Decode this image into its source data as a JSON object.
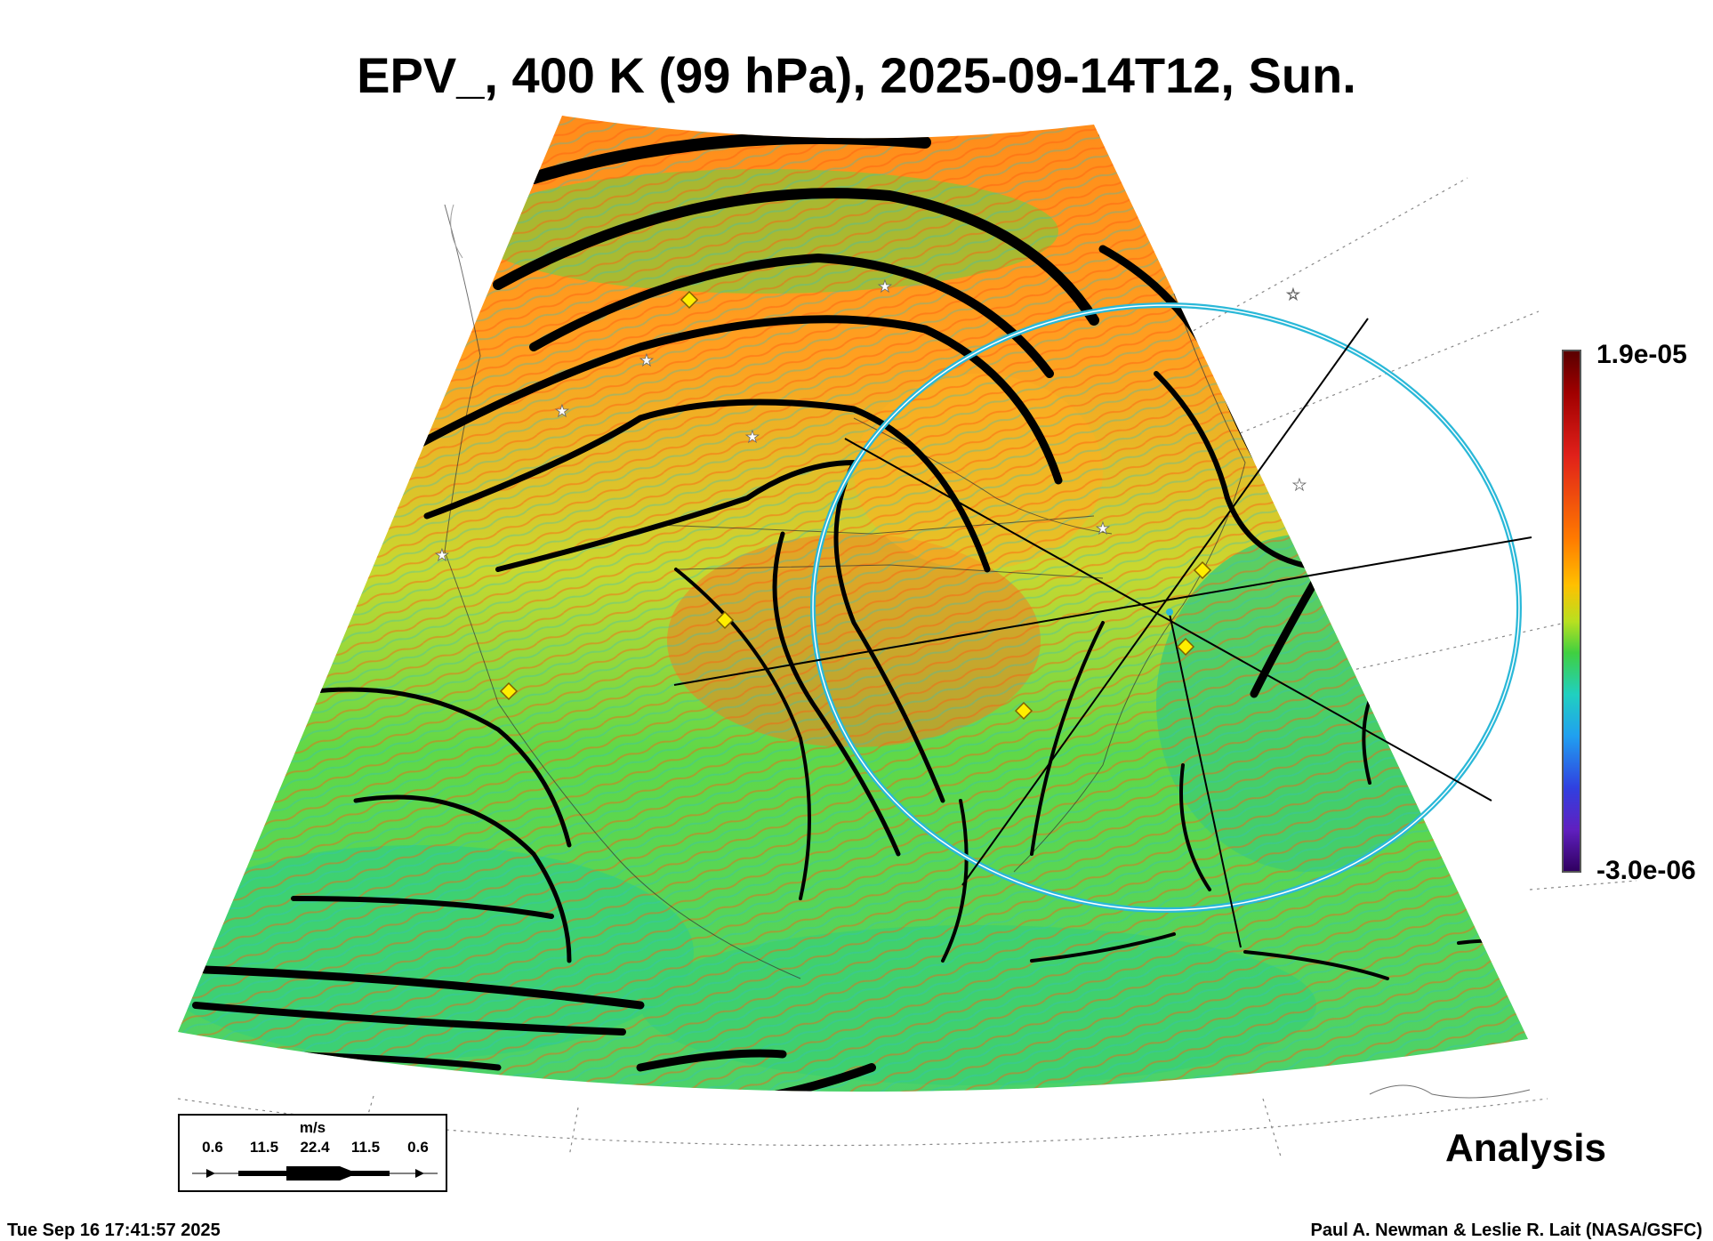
{
  "title": "EPV_, 400 K (99 hPa), 2025-09-14T12, Sun.",
  "colorbar": {
    "max_label": "1.9e-05",
    "min_label": "-3.0e-06",
    "colors": [
      "#5a0000",
      "#a00000",
      "#e0201a",
      "#ff7a00",
      "#ffc000",
      "#b8e020",
      "#40d040",
      "#20d0c0",
      "#20a0f0",
      "#3040e0",
      "#6020c0",
      "#300060"
    ]
  },
  "analysis_label": "Analysis",
  "timestamp": "Tue Sep 16 17:41:57 2025",
  "credit": "Paul A. Newman & Leslie R. Lait (NASA/GSFC)",
  "wind_legend": {
    "unit": "m/s",
    "ticks": [
      "0.6",
      "11.5",
      "22.4",
      "11.5",
      "0.6"
    ]
  },
  "map": {
    "field": "EPV_",
    "isentropic_level": "400 K (99 hPa)",
    "markers": {
      "star_color": "#ffffff",
      "diamond_color": "#ffee00",
      "range_ring_color": "#2ab8d8"
    }
  }
}
